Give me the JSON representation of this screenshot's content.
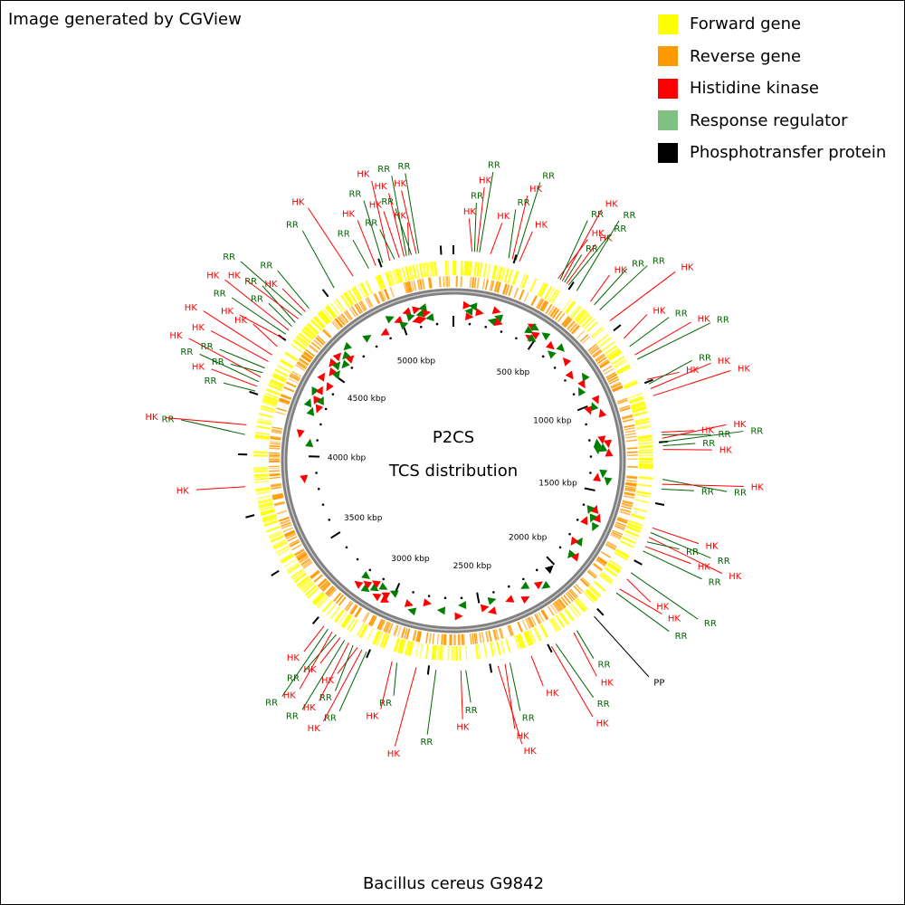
{
  "credit": "Image generated by CGView",
  "title_line1": "P2CS",
  "title_line2": "TCS distribution",
  "organism": "Bacillus cereus G9842",
  "legend": [
    {
      "label": "Forward gene",
      "color": "#ffff00"
    },
    {
      "label": "Reverse gene",
      "color": "#ff9900"
    },
    {
      "label": "Histidine kinase",
      "color": "#ff0000"
    },
    {
      "label": "Response regulator",
      "color": "#80c080"
    },
    {
      "label": "Phosphotransfer protein",
      "color": "#000000"
    }
  ],
  "colors": {
    "forward_gene": "#ffff00",
    "reverse_gene": "#ff9900",
    "hk_marker": "#ff0000",
    "rr_marker": "#008000",
    "hk_text": "#ff0000",
    "rr_text": "#006400",
    "pp_text": "#000000",
    "backbone": "#808080"
  },
  "genome_length_kbp": 5300,
  "ruler_labels": [
    {
      "kbp": 500,
      "text": "500 kbp"
    },
    {
      "kbp": 1000,
      "text": "1000 kbp"
    },
    {
      "kbp": 1500,
      "text": "1500 kbp"
    },
    {
      "kbp": 2000,
      "text": "2000 kbp"
    },
    {
      "kbp": 2500,
      "text": "2500 kbp"
    },
    {
      "kbp": 3000,
      "text": "3000 kbp"
    },
    {
      "kbp": 3500,
      "text": "3500 kbp"
    },
    {
      "kbp": 4000,
      "text": "4000 kbp"
    },
    {
      "kbp": 4500,
      "text": "4500 kbp"
    },
    {
      "kbp": 5000,
      "text": "5000 kbp"
    }
  ],
  "features": [
    {
      "type": "HK",
      "label": "HK",
      "kbp": 75
    },
    {
      "type": "RR",
      "label": "RR",
      "kbp": 85
    },
    {
      "type": "HK",
      "label": "HK",
      "kbp": 95
    },
    {
      "type": "RR",
      "label": "RR",
      "kbp": 105
    },
    {
      "type": "HK",
      "label": "HK",
      "kbp": 150
    },
    {
      "type": "RR",
      "label": "RR",
      "kbp": 225
    },
    {
      "type": "HK",
      "label": "HK",
      "kbp": 240
    },
    {
      "type": "RR",
      "label": "RR",
      "kbp": 255
    },
    {
      "type": "HK",
      "label": "HK",
      "kbp": 270
    },
    {
      "type": "HK",
      "label": "HK",
      "kbp": 440
    },
    {
      "type": "RR",
      "label": "RR",
      "kbp": 450
    },
    {
      "type": "HK",
      "label": "HK",
      "kbp": 460
    },
    {
      "type": "RR",
      "label": "RR",
      "kbp": 470
    },
    {
      "type": "HK",
      "label": "HK",
      "kbp": 480
    },
    {
      "type": "RR",
      "label": "RR",
      "kbp": 490
    },
    {
      "type": "RR",
      "label": "RR",
      "kbp": 530
    },
    {
      "type": "HK",
      "label": "HK",
      "kbp": 600
    },
    {
      "type": "RR",
      "label": "RR",
      "kbp": 620
    },
    {
      "type": "RR",
      "label": "RR",
      "kbp": 650
    },
    {
      "type": "HK",
      "label": "HK",
      "kbp": 710
    },
    {
      "type": "HK",
      "label": "HK",
      "kbp": 800
    },
    {
      "type": "RR",
      "label": "RR",
      "kbp": 840
    },
    {
      "type": "HK",
      "label": "HK",
      "kbp": 880
    },
    {
      "type": "RR",
      "label": "RR",
      "kbp": 900
    },
    {
      "type": "HK",
      "label": "HK",
      "kbp": 990
    },
    {
      "type": "RR",
      "label": "RR",
      "kbp": 1010
    },
    {
      "type": "HK",
      "label": "HK",
      "kbp": 1030
    },
    {
      "type": "HK",
      "label": "HK",
      "kbp": 1060
    },
    {
      "type": "HK",
      "label": "HK",
      "kbp": 1210
    },
    {
      "type": "RR",
      "label": "RR",
      "kbp": 1220
    },
    {
      "type": "HK",
      "label": "HK",
      "kbp": 1235
    },
    {
      "type": "RR",
      "label": "RR",
      "kbp": 1250
    },
    {
      "type": "RR",
      "label": "RR",
      "kbp": 1265
    },
    {
      "type": "HK",
      "label": "HK",
      "kbp": 1280
    },
    {
      "type": "RR",
      "label": "RR",
      "kbp": 1400
    },
    {
      "type": "HK",
      "label": "HK",
      "kbp": 1420
    },
    {
      "type": "RR",
      "label": "RR",
      "kbp": 1440
    },
    {
      "type": "HK",
      "label": "HK",
      "kbp": 1600
    },
    {
      "type": "RR",
      "label": "RR",
      "kbp": 1620
    },
    {
      "type": "HK",
      "label": "HK",
      "kbp": 1640
    },
    {
      "type": "RR",
      "label": "RR",
      "kbp": 1660
    },
    {
      "type": "HK",
      "label": "HK",
      "kbp": 1680
    },
    {
      "type": "RR",
      "label": "RR",
      "kbp": 1700
    },
    {
      "type": "RR",
      "label": "RR",
      "kbp": 1800
    },
    {
      "type": "HK",
      "label": "HK",
      "kbp": 1830
    },
    {
      "type": "HK",
      "label": "HK",
      "kbp": 1880
    },
    {
      "type": "RR",
      "label": "RR",
      "kbp": 1900
    },
    {
      "type": "PP",
      "label": "PP",
      "kbp": 2030
    },
    {
      "type": "RR",
      "label": "RR",
      "kbp": 2120
    },
    {
      "type": "HK",
      "label": "HK",
      "kbp": 2135
    },
    {
      "type": "RR",
      "label": "RR",
      "kbp": 2220
    },
    {
      "type": "HK",
      "label": "HK",
      "kbp": 2240
    },
    {
      "type": "HK",
      "label": "HK",
      "kbp": 2330
    },
    {
      "type": "RR",
      "label": "RR",
      "kbp": 2420
    },
    {
      "type": "HK",
      "label": "HK",
      "kbp": 2440
    },
    {
      "type": "HK",
      "label": "HK",
      "kbp": 2470
    },
    {
      "type": "RR",
      "label": "RR",
      "kbp": 2600
    },
    {
      "type": "HK",
      "label": "HK",
      "kbp": 2620
    },
    {
      "type": "RR",
      "label": "RR",
      "kbp": 2720
    },
    {
      "type": "HK",
      "label": "HK",
      "kbp": 2800
    },
    {
      "type": "RR",
      "label": "RR",
      "kbp": 2880
    },
    {
      "type": "HK",
      "label": "HK",
      "kbp": 2900
    },
    {
      "type": "RR",
      "label": "RR",
      "kbp": 3010
    },
    {
      "type": "HK",
      "label": "HK",
      "kbp": 3030
    },
    {
      "type": "HK",
      "label": "HK",
      "kbp": 3050
    },
    {
      "type": "RR",
      "label": "RR",
      "kbp": 3070
    },
    {
      "type": "HK",
      "label": "HK",
      "kbp": 3090
    },
    {
      "type": "RR",
      "label": "RR",
      "kbp": 3110
    },
    {
      "type": "HK",
      "label": "HK",
      "kbp": 3130
    },
    {
      "type": "RR",
      "label": "RR",
      "kbp": 3150
    },
    {
      "type": "HK",
      "label": "HK",
      "kbp": 3170
    },
    {
      "type": "RR",
      "label": "RR",
      "kbp": 3190
    },
    {
      "type": "HK",
      "label": "HK",
      "kbp": 3210
    },
    {
      "type": "HK",
      "label": "HK",
      "kbp": 3870
    },
    {
      "type": "RR",
      "label": "RR",
      "kbp": 4080
    },
    {
      "type": "HK",
      "label": "HK",
      "kbp": 4120
    },
    {
      "type": "RR",
      "label": "RR",
      "kbp": 4260
    },
    {
      "type": "HK",
      "label": "HK",
      "kbp": 4280
    },
    {
      "type": "RR",
      "label": "RR",
      "kbp": 4300
    },
    {
      "type": "HK",
      "label": "HK",
      "kbp": 4320
    },
    {
      "type": "RR",
      "label": "RR",
      "kbp": 4340
    },
    {
      "type": "RR",
      "label": "RR",
      "kbp": 4360
    },
    {
      "type": "HK",
      "label": "HK",
      "kbp": 4390
    },
    {
      "type": "HK",
      "label": "HK",
      "kbp": 4420
    },
    {
      "type": "HK",
      "label": "HK",
      "kbp": 4460
    },
    {
      "type": "HK",
      "label": "HK",
      "kbp": 4500
    },
    {
      "type": "RR",
      "label": "RR",
      "kbp": 4520
    },
    {
      "type": "HK",
      "label": "HK",
      "kbp": 4540
    },
    {
      "type": "RR",
      "label": "RR",
      "kbp": 4560
    },
    {
      "type": "RR",
      "label": "RR",
      "kbp": 4580
    },
    {
      "type": "HK",
      "label": "HK",
      "kbp": 4600
    },
    {
      "type": "RR",
      "label": "RR",
      "kbp": 4620
    },
    {
      "type": "HK",
      "label": "HK",
      "kbp": 4640
    },
    {
      "type": "RR",
      "label": "RR",
      "kbp": 4660
    },
    {
      "type": "RR",
      "label": "RR",
      "kbp": 4790
    },
    {
      "type": "HK",
      "label": "HK",
      "kbp": 4880
    },
    {
      "type": "RR",
      "label": "RR",
      "kbp": 4950
    },
    {
      "type": "HK",
      "label": "HK",
      "kbp": 4980
    },
    {
      "type": "RR",
      "label": "RR",
      "kbp": 5010
    },
    {
      "type": "HK",
      "label": "HK",
      "kbp": 5040
    },
    {
      "type": "RR",
      "label": "RR",
      "kbp": 5060
    },
    {
      "type": "HK",
      "label": "HK",
      "kbp": 5080
    },
    {
      "type": "HK",
      "label": "HK",
      "kbp": 5100
    },
    {
      "type": "RR",
      "label": "RR",
      "kbp": 5110
    },
    {
      "type": "HK",
      "label": "HK",
      "kbp": 5120
    },
    {
      "type": "RR",
      "label": "RR",
      "kbp": 5130
    },
    {
      "type": "HK",
      "label": "HK",
      "kbp": 5150
    },
    {
      "type": "RR",
      "label": "RR",
      "kbp": 5160
    }
  ]
}
